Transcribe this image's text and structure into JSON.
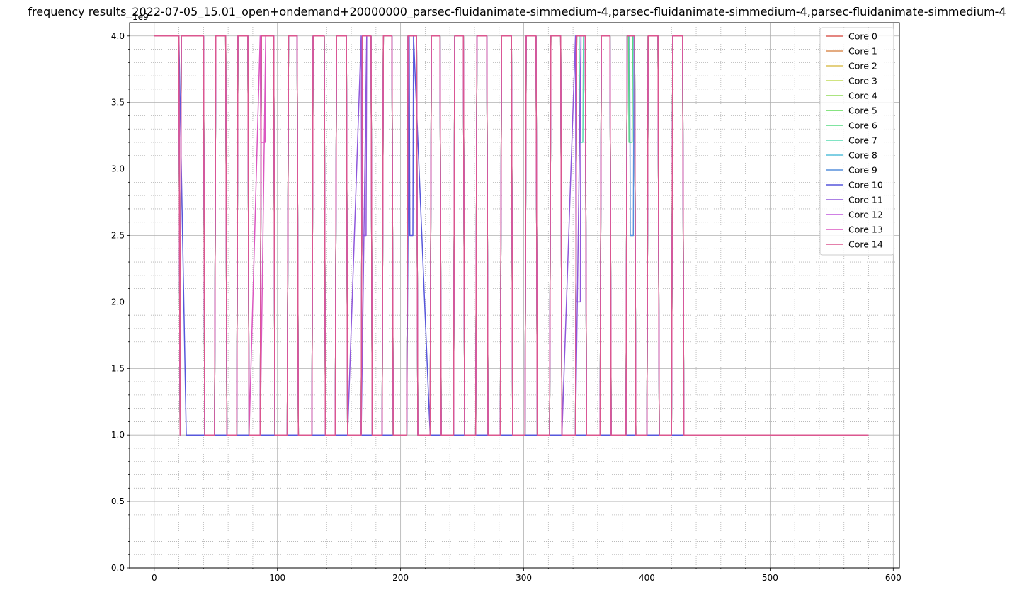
{
  "chart_data": {
    "type": "line",
    "title": "frequency results_2022-07-05_15.01_open+ondemand+20000000_parsec-fluidanimate-simmedium-4,parsec-fluidanimate-simmedium-4,parsec-fluidanimate-simmedium-4",
    "xlabel": "",
    "ylabel": "",
    "y_offset_label": "1e9",
    "xlim": [
      -20,
      605
    ],
    "ylim": [
      0,
      4.1
    ],
    "x_ticks": [
      0,
      100,
      200,
      300,
      400,
      500,
      600
    ],
    "y_ticks": [
      0.0,
      0.5,
      1.0,
      1.5,
      2.0,
      2.5,
      3.0,
      3.5,
      4.0
    ],
    "x_tick_labels": [
      "0",
      "100",
      "200",
      "300",
      "400",
      "500",
      "600"
    ],
    "y_tick_labels": [
      "0.0",
      "0.5",
      "1.0",
      "1.5",
      "2.0",
      "2.5",
      "3.0",
      "3.5",
      "4.0"
    ],
    "grid": true,
    "minor_grid": true,
    "legend_position": "top-right",
    "high_intervals": [
      [
        21,
        40
      ],
      [
        49,
        58
      ],
      [
        67,
        76
      ],
      [
        86,
        97
      ],
      [
        108,
        116
      ],
      [
        128,
        138
      ],
      [
        147,
        156
      ],
      [
        168,
        176
      ],
      [
        185,
        193
      ],
      [
        205,
        213
      ],
      [
        224,
        232
      ],
      [
        243,
        251
      ],
      [
        261,
        270
      ],
      [
        281,
        290
      ],
      [
        301,
        310
      ],
      [
        321,
        330
      ],
      [
        342,
        350
      ],
      [
        362,
        370
      ],
      [
        383,
        390
      ],
      [
        400,
        409
      ],
      [
        420,
        429
      ]
    ],
    "start_high_end": 21,
    "core10_high": [
      [
        0,
        20
      ]
    ],
    "dips": [
      {
        "series": "Core 13",
        "start": 86,
        "end": 90,
        "value": 3.2
      },
      {
        "series": "Core 11",
        "start": 168,
        "end": 172,
        "value": 2.5
      },
      {
        "series": "Core 10",
        "start": 207,
        "end": 210,
        "value": 2.5
      },
      {
        "series": "Core 11",
        "start": 342,
        "end": 346,
        "value": 2.0
      },
      {
        "series": "Core 7",
        "start": 345,
        "end": 348,
        "value": 3.2
      },
      {
        "series": "Core 6",
        "start": 385,
        "end": 388,
        "value": 3.2
      },
      {
        "series": "Core 9",
        "start": 386,
        "end": 389,
        "value": 2.5
      }
    ],
    "x_end": 580,
    "low_value": 1.0,
    "high_value": 4.0,
    "series": [
      {
        "name": "Core 0",
        "color": "#db5f57"
      },
      {
        "name": "Core 1",
        "color": "#db8f57"
      },
      {
        "name": "Core 2",
        "color": "#dbc057"
      },
      {
        "name": "Core 3",
        "color": "#c0db57"
      },
      {
        "name": "Core 4",
        "color": "#8fdb57"
      },
      {
        "name": "Core 5",
        "color": "#5fdb57"
      },
      {
        "name": "Core 6",
        "color": "#57db80"
      },
      {
        "name": "Core 7",
        "color": "#57dbb0"
      },
      {
        "name": "Core 8",
        "color": "#57c0db"
      },
      {
        "name": "Core 9",
        "color": "#578fdb"
      },
      {
        "name": "Core 10",
        "color": "#5757db"
      },
      {
        "name": "Core 11",
        "color": "#8f57db"
      },
      {
        "name": "Core 12",
        "color": "#c057db"
      },
      {
        "name": "Core 13",
        "color": "#db57c0"
      },
      {
        "name": "Core 14",
        "color": "#db578f"
      }
    ]
  }
}
